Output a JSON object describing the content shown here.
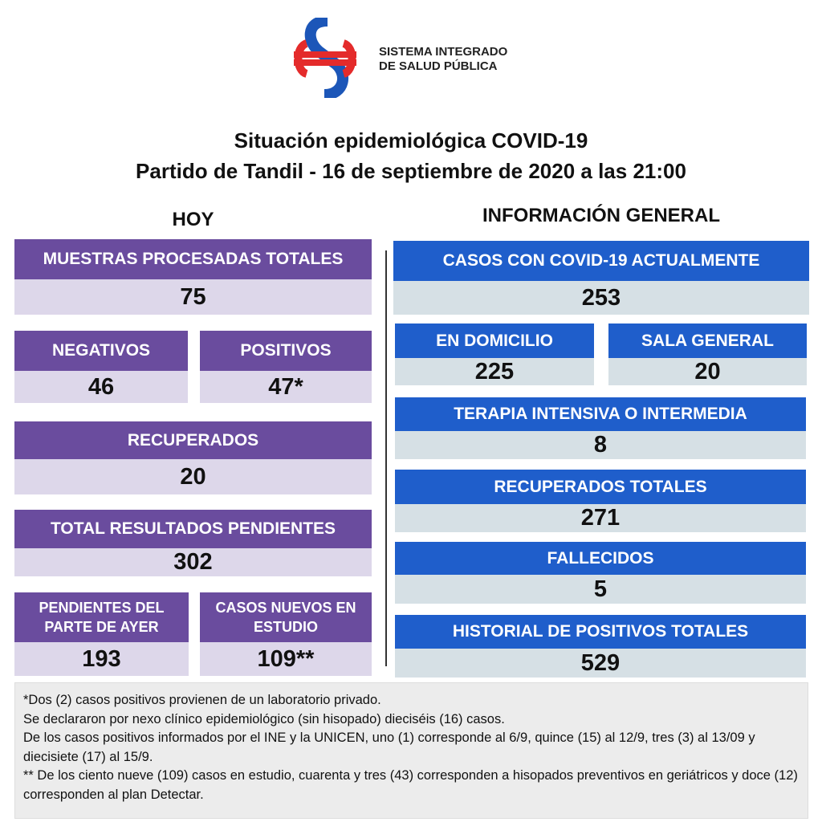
{
  "header": {
    "org_line1": "SISTEMA INTEGRADO",
    "org_line2": "DE SALUD PÚBLICA",
    "title_line1": "Situación epidemiológica COVID-19",
    "title_line2": "Partido de Tandil - 16 de septiembre de 2020 a las 21:00"
  },
  "hoy": {
    "heading": "HOY",
    "boxes": [
      {
        "label": "MUESTRAS PROCESADAS TOTALES",
        "value": 75
      },
      {
        "label": "NEGATIVOS",
        "value": 46
      },
      {
        "label": "POSITIVOS",
        "value": "47*"
      },
      {
        "label": "RECUPERADOS",
        "value": 20
      },
      {
        "label": "TOTAL RESULTADOS PENDIENTES",
        "value": 302
      },
      {
        "label": "PENDIENTES DEL PARTE DE  AYER",
        "value": 193
      },
      {
        "label": "CASOS NUEVOS EN ESTUDIO",
        "value": "109**"
      }
    ]
  },
  "general": {
    "heading": "INFORMACIÓN GENERAL",
    "boxes": [
      {
        "label": "CASOS CON COVID-19 ACTUALMENTE",
        "value": 253
      },
      {
        "label": "EN DOMICILIO",
        "value": 225
      },
      {
        "label": "SALA GENERAL",
        "value": 20
      },
      {
        "label": "TERAPIA INTENSIVA O INTERMEDIA",
        "value": 8
      },
      {
        "label": "RECUPERADOS TOTALES",
        "value": 271
      },
      {
        "label": "FALLECIDOS",
        "value": 5
      },
      {
        "label": "HISTORIAL DE POSITIVOS TOTALES",
        "value": 529
      }
    ]
  },
  "notes": [
    "*Dos (2) casos positivos provienen de un laboratorio privado.",
    "Se declararon por nexo clínico epidemiológico (sin hisopado) dieciséis (16) casos.",
    "De los casos positivos informados por el INE y la UNICEN, uno (1) corresponde al 6/9, quince (15) al 12/9, tres (3) al 13/09 y diecisiete (17) al 15/9.",
    "** De los ciento nueve (109) casos en estudio, cuarenta y tres (43) corresponden a hisopados preventivos en geriátricos y doce (12) corresponden al plan Detectar."
  ]
}
